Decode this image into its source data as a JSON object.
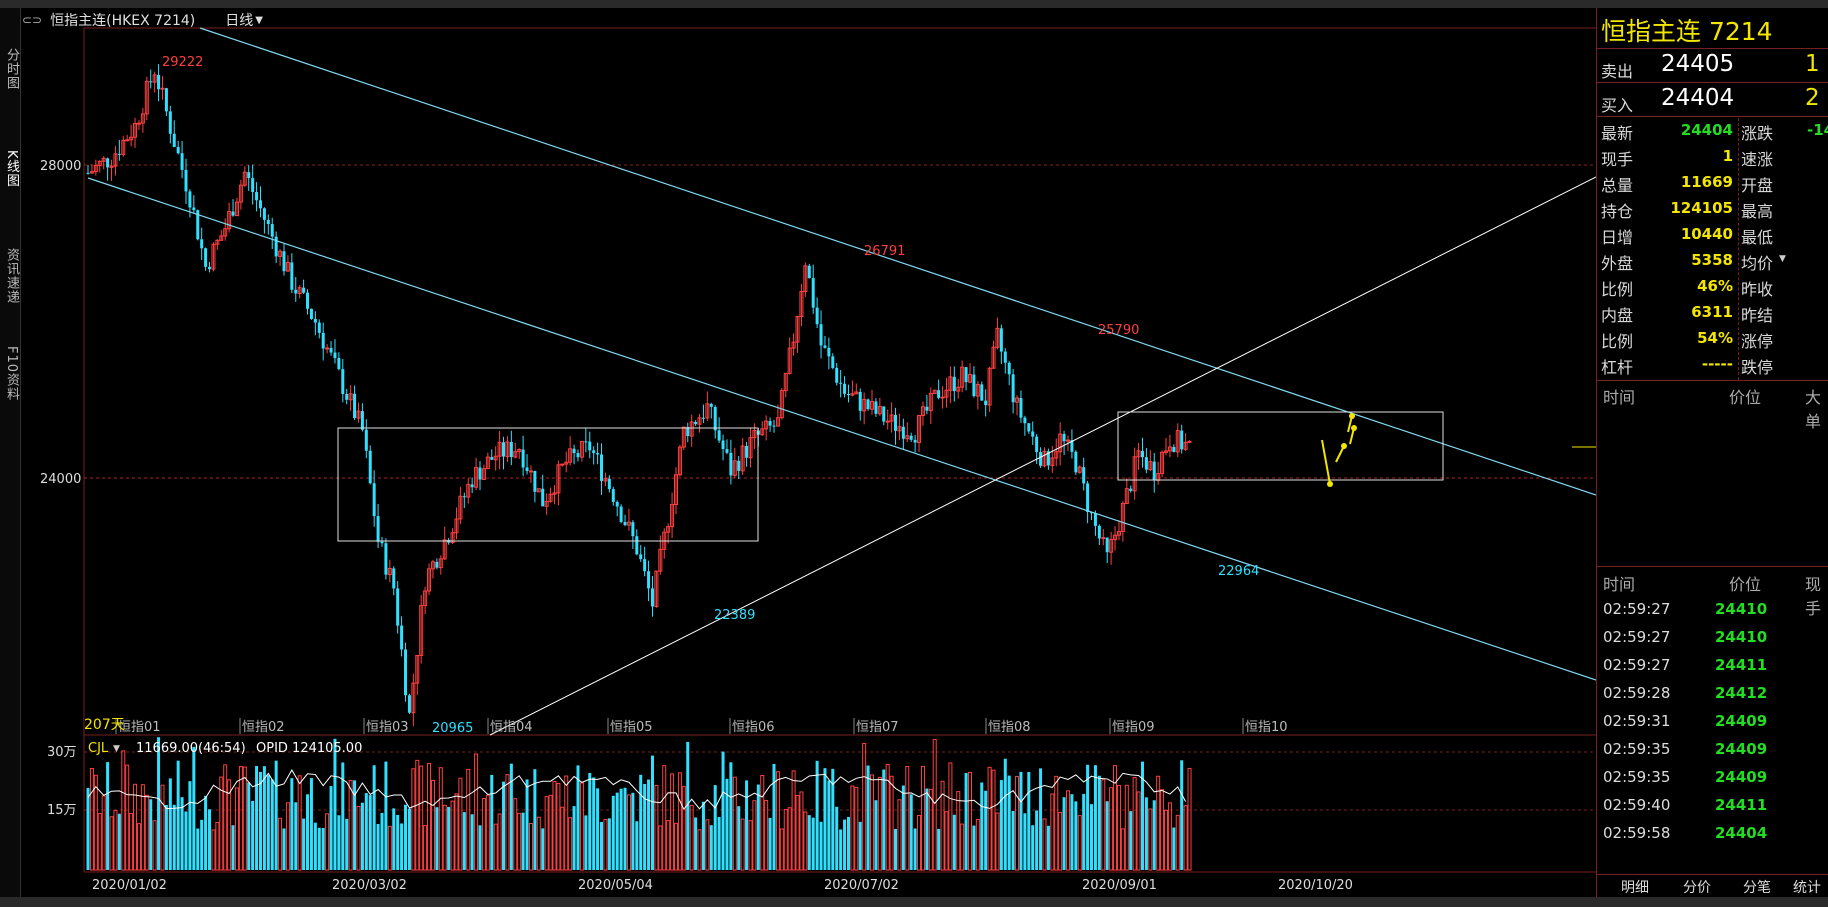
{
  "left_tabs": [
    "分时图",
    "K线图",
    "资讯速递",
    "F10资料"
  ],
  "header": {
    "title": "恒指主连(HKEX 7214)",
    "period": "日线"
  },
  "right_panel": {
    "title": "恒指主连  7214",
    "sell": {
      "label": "卖出",
      "price": "24405",
      "qty": "1"
    },
    "buy": {
      "label": "买入",
      "price": "24404",
      "qty": "2"
    },
    "stats_left": [
      {
        "label": "最新",
        "value": "24404",
        "color": "green"
      },
      {
        "label": "现手",
        "value": "1",
        "color": "yellow"
      },
      {
        "label": "总量",
        "value": "11669",
        "color": "yellow"
      },
      {
        "label": "持仓",
        "value": "124105",
        "color": "yellow"
      },
      {
        "label": "日增",
        "value": "10440",
        "color": "yellow"
      },
      {
        "label": "外盘",
        "value": "5358",
        "color": "yellow"
      },
      {
        "label": "比例",
        "value": "46%",
        "color": "yellow"
      },
      {
        "label": "内盘",
        "value": "6311",
        "color": "yellow"
      },
      {
        "label": "比例",
        "value": "54%",
        "color": "yellow"
      },
      {
        "label": "杠杆",
        "value": "-----",
        "color": "yellow"
      }
    ],
    "stats_right": [
      {
        "label": "涨跌",
        "value": "-14"
      },
      {
        "label": "速涨",
        "value": ""
      },
      {
        "label": "开盘",
        "value": ""
      },
      {
        "label": "最高",
        "value": ""
      },
      {
        "label": "最低",
        "value": ""
      },
      {
        "label": "均价",
        "value": ""
      },
      {
        "label": "昨收",
        "value": ""
      },
      {
        "label": "昨结",
        "value": ""
      },
      {
        "label": "涨停",
        "value": ""
      },
      {
        "label": "跌停",
        "value": ""
      }
    ],
    "mini_header": [
      "时间",
      "价位",
      "大单"
    ],
    "ticks_header": [
      "时间",
      "价位",
      "现手"
    ],
    "ticks": [
      {
        "time": "02:59:27",
        "price": "24410"
      },
      {
        "time": "02:59:27",
        "price": "24410"
      },
      {
        "time": "02:59:27",
        "price": "24411"
      },
      {
        "time": "02:59:28",
        "price": "24412"
      },
      {
        "time": "02:59:31",
        "price": "24409"
      },
      {
        "time": "02:59:35",
        "price": "24409"
      },
      {
        "time": "02:59:35",
        "price": "24409"
      },
      {
        "time": "02:59:40",
        "price": "24411"
      },
      {
        "time": "02:59:58",
        "price": "24404"
      }
    ],
    "bottom_tabs": [
      "明细",
      "分价",
      "分笔",
      "统计"
    ]
  },
  "chart_data": {
    "type": "candlestick",
    "price_axis": {
      "ticks": [
        "28000",
        "24000"
      ]
    },
    "annotations": [
      {
        "text": "29222",
        "color": "#ff4040"
      },
      {
        "text": "26791",
        "color": "#ff4040"
      },
      {
        "text": "25790",
        "color": "#ff4040"
      },
      {
        "text": "22389",
        "color": "#30e0ff"
      },
      {
        "text": "22964",
        "color": "#30e0ff"
      },
      {
        "text": "20965",
        "color": "#30e0ff"
      }
    ],
    "month_labels": [
      "恒指01",
      "恒指02",
      "恒指03",
      "恒指04",
      "恒指05",
      "恒指06",
      "恒指07",
      "恒指08",
      "恒指09",
      "恒指10"
    ],
    "day_count": "207天",
    "volume_axis": {
      "ticks": [
        "30万",
        "15万"
      ]
    },
    "volume_legend": {
      "name": "CJL",
      "value": "11669.00(46:54)",
      "opid": "OPID 124105.00"
    },
    "date_labels": [
      "2020/01/02",
      "2020/03/02",
      "2020/05/04",
      "2020/07/02",
      "2020/09/01",
      "2020/10/20"
    ],
    "key_prices": {
      "high": 29222,
      "low": 20965,
      "last": 24404
    }
  }
}
